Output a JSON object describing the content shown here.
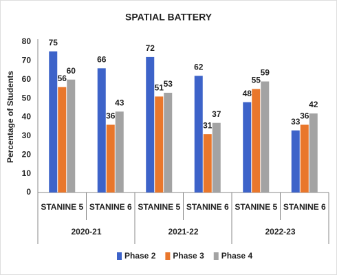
{
  "chart_data": {
    "type": "bar",
    "title": "SPATIAL BATTERY",
    "y_label": "Percentage of Students",
    "categories": [
      "STANINE 5",
      "STANINE 6",
      "STANINE 5",
      "STANINE 6",
      "STANINE 5",
      "STANINE 6"
    ],
    "groups": [
      "2020-21",
      "2021-22",
      "2022-23"
    ],
    "series": [
      {
        "name": "Phase 2",
        "color": "#3d63c9",
        "values": [
          75,
          66,
          72,
          62,
          48,
          33
        ]
      },
      {
        "name": "Phase 3",
        "color": "#e9772c",
        "values": [
          56,
          36,
          51,
          31,
          55,
          36
        ]
      },
      {
        "name": "Phase 4",
        "color": "#a3a3a3",
        "values": [
          60,
          43,
          53,
          37,
          59,
          42
        ]
      }
    ],
    "ylim": [
      0,
      80
    ],
    "yticks": [
      0,
      10,
      20,
      30,
      40,
      50,
      60,
      70,
      80
    ],
    "grid": false,
    "legend": "bottom"
  }
}
